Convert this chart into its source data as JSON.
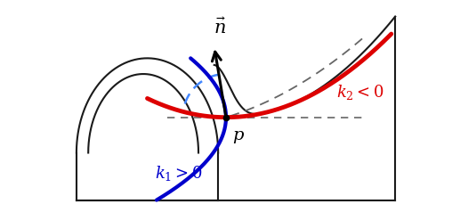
{
  "background_color": "#ffffff",
  "surface_color": "#1a1a1a",
  "red_curve_color": "#dd0000",
  "blue_curve_color": "#0000cc",
  "dashed_color": "#666666",
  "dashed_blue_color": "#4488ff",
  "figsize": [
    5.08,
    2.3
  ],
  "dpi": 100,
  "xlim": [
    -4.5,
    4.5
  ],
  "ylim": [
    -2.2,
    3.0
  ]
}
